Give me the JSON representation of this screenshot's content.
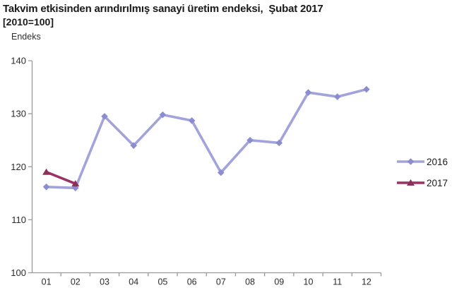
{
  "title": {
    "line1": "Takvim etkisinden arındırılmış sanayi üretim endeksi,  Şubat 2017",
    "line2": "[2010=100]"
  },
  "chart_data": {
    "type": "line",
    "title": "Takvim etkisinden arındırılmış sanayi üretim endeksi, Şubat 2017 [2010=100]",
    "ylabel": "Endeks",
    "xlabel": "",
    "categories": [
      "01",
      "02",
      "03",
      "04",
      "05",
      "06",
      "07",
      "08",
      "09",
      "10",
      "11",
      "12"
    ],
    "series": [
      {
        "name": "2016",
        "marker": "diamond",
        "line_color": "#a3a3dc",
        "marker_color": "#8c8cd0",
        "values": [
          116.2,
          116.0,
          129.5,
          124.0,
          129.8,
          128.7,
          118.9,
          125.0,
          124.5,
          134.0,
          133.2,
          134.6
        ]
      },
      {
        "name": "2017",
        "marker": "triangle",
        "line_color": "#993366",
        "marker_color": "#8e2f5a",
        "values": [
          119.0,
          116.8
        ]
      }
    ],
    "ylim": [
      100,
      140
    ],
    "yticks": [
      100,
      110,
      120,
      130,
      140
    ],
    "grid": false,
    "legend_position": "right",
    "axis_color": "#9a9a9a",
    "tick_label_color": "#2b2b2b",
    "legend_text_color": "#1a1a1a"
  }
}
